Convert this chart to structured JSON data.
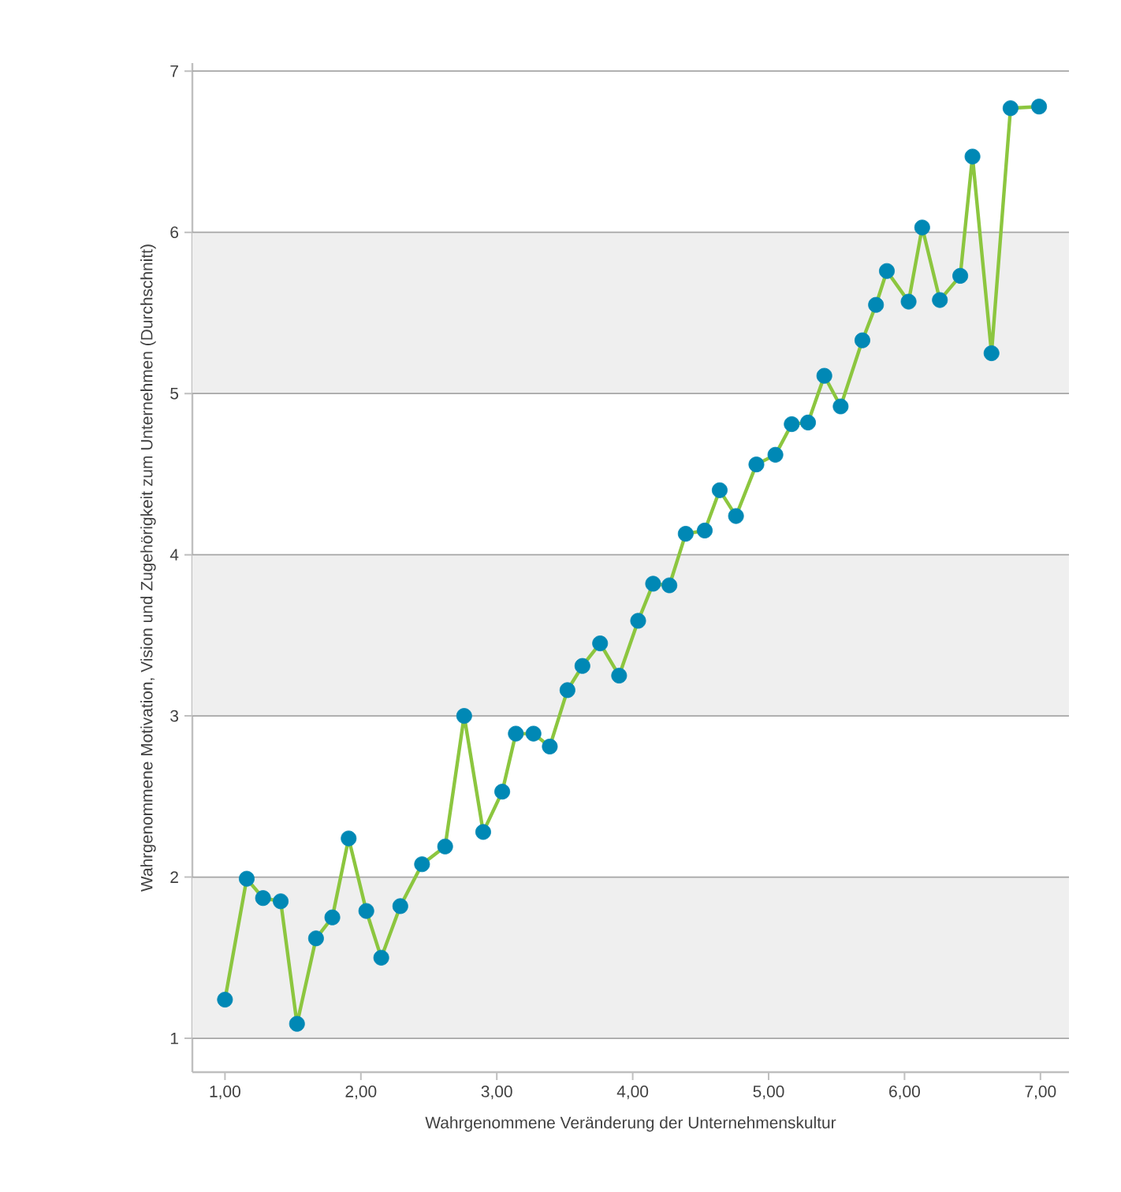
{
  "chart_data": {
    "type": "line",
    "xlabel": "Wahrgenommene Veränderung der Unternehmenskultur",
    "ylabel": "Wahrgenommene Motivation, Vision und Zugehörigkeit zum Unternehmen (Durchschnitt)",
    "xlim": [
      0.76,
      7.21
    ],
    "ylim": [
      0.79,
      7.05
    ],
    "xticks": [
      {
        "value": 1,
        "label": "1,00"
      },
      {
        "value": 2,
        "label": "2,00"
      },
      {
        "value": 3,
        "label": "3,00"
      },
      {
        "value": 4,
        "label": "4,00"
      },
      {
        "value": 5,
        "label": "5,00"
      },
      {
        "value": 6,
        "label": "6,00"
      },
      {
        "value": 7,
        "label": "7,00"
      }
    ],
    "yticks": [
      1,
      2,
      3,
      4,
      5,
      6,
      7
    ],
    "grid": "y",
    "marker": "circle",
    "line_style": "solid",
    "bands": [
      {
        "axis": "y",
        "from": 1,
        "to": 2,
        "color": "#efefef"
      },
      {
        "axis": "y",
        "from": 3,
        "to": 4,
        "color": "#efefef"
      },
      {
        "axis": "y",
        "from": 5,
        "to": 6,
        "color": "#efefef"
      }
    ],
    "series": [
      {
        "color": "#8cc63f",
        "colors": [
          "#0088b5",
          "#0088b5",
          "#0088b5",
          "#0088b5",
          "#0088b5",
          "#0088b5",
          "#0088b5",
          "#0088b5",
          "#0088b5",
          "#0088b5",
          "#0088b5",
          "#0088b5",
          "#0088b5",
          "#0088b5",
          "#0088b5",
          "#0088b5",
          "#0088b5",
          "#0088b5",
          "#0088b5",
          "#0088b5",
          "#0088b5",
          "#0088b5",
          "#0088b5",
          "#0088b5",
          "#0088b5",
          "#0088b5",
          "#0088b5",
          "#0088b5",
          "#0088b5",
          "#0088b5",
          "#0088b5",
          "#0088b5",
          "#0088b5",
          "#0088b5",
          "#0088b5",
          "#0088b5",
          "#0088b5",
          "#0088b5",
          "#0088b5",
          "#0088b5",
          "#0088b5",
          "#0088b5",
          "#0088b5",
          "#0088b5",
          "#0088b5",
          "#0088b5",
          "#0088b5"
        ],
        "x": [
          1.0,
          1.16,
          1.28,
          1.41,
          1.53,
          1.67,
          1.79,
          1.91,
          2.04,
          2.15,
          2.29,
          2.45,
          2.62,
          2.76,
          2.9,
          3.04,
          3.14,
          3.27,
          3.39,
          3.52,
          3.63,
          3.76,
          3.9,
          4.04,
          4.15,
          4.27,
          4.39,
          4.53,
          4.64,
          4.76,
          4.91,
          5.05,
          5.17,
          5.29,
          5.41,
          5.53,
          5.69,
          5.79,
          5.87,
          6.03,
          6.13,
          6.26,
          6.41,
          6.5,
          6.64,
          6.78,
          6.99
        ],
        "values": [
          1.24,
          1.99,
          1.87,
          1.85,
          1.09,
          1.62,
          1.75,
          2.24,
          1.79,
          1.5,
          1.82,
          2.08,
          2.19,
          3.0,
          2.28,
          2.53,
          2.89,
          2.89,
          2.81,
          3.16,
          3.31,
          3.45,
          3.25,
          3.59,
          3.82,
          3.81,
          4.13,
          4.15,
          4.4,
          4.24,
          4.56,
          4.62,
          4.81,
          4.82,
          5.11,
          4.92,
          5.33,
          5.55,
          5.76,
          5.57,
          6.03,
          5.58,
          5.73,
          6.47,
          5.25,
          6.77,
          6.78
        ]
      }
    ]
  }
}
